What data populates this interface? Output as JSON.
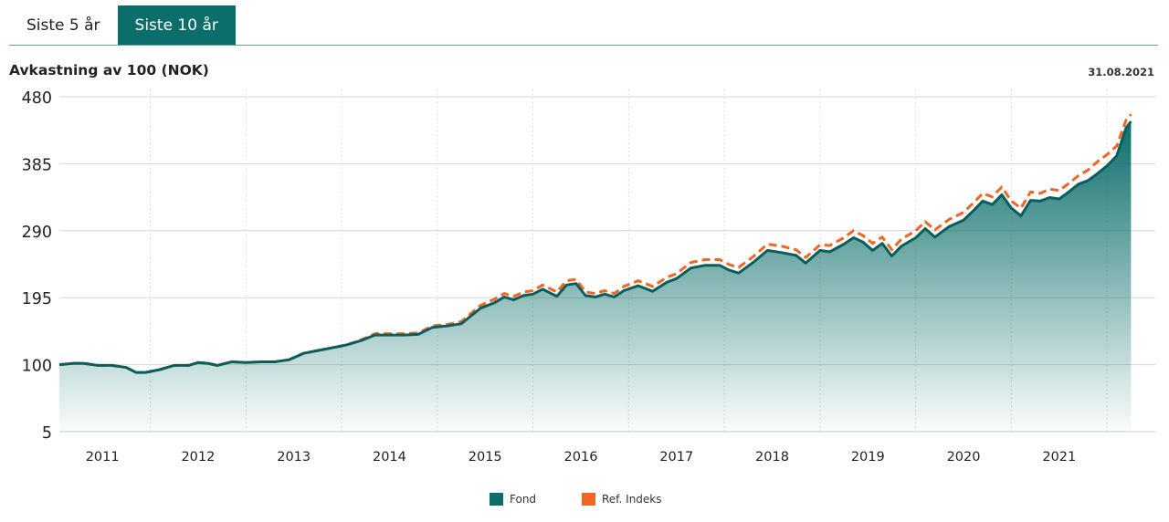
{
  "tabs": [
    {
      "label": "Siste 5 år",
      "active": false
    },
    {
      "label": "Siste 10 år",
      "active": true
    }
  ],
  "chart_title": "Avkastning av 100 (NOK)",
  "as_of_date": "31.08.2021",
  "colors": {
    "fond": "#0b6e6b",
    "ref": "#f26522",
    "tab_active": "#0b6e6b"
  },
  "chart_data": {
    "type": "area",
    "title": "Avkastning av 100 (NOK)",
    "xlabel": "",
    "ylabel": "",
    "x_range": [
      2010.55,
      2021.67
    ],
    "ylim": [
      5,
      480
    ],
    "yticks": [
      5,
      100,
      195,
      290,
      385,
      480
    ],
    "xticks": [
      {
        "label": "2011",
        "pos": 2011.0
      },
      {
        "label": "2012",
        "pos": 2012.0
      },
      {
        "label": "2013",
        "pos": 2013.0
      },
      {
        "label": "2014",
        "pos": 2014.0
      },
      {
        "label": "2015",
        "pos": 2015.0
      },
      {
        "label": "2016",
        "pos": 2016.0
      },
      {
        "label": "2017",
        "pos": 2017.0
      },
      {
        "label": "2018",
        "pos": 2018.0
      },
      {
        "label": "2019",
        "pos": 2019.0
      },
      {
        "label": "2020",
        "pos": 2020.0
      },
      {
        "label": "2021",
        "pos": 2021.0
      }
    ],
    "grid": true,
    "legend_position": "bottom-center",
    "series": [
      {
        "name": "Fond",
        "style": "area",
        "points": [
          [
            2010.55,
            100
          ],
          [
            2010.7,
            102
          ],
          [
            2010.8,
            102
          ],
          [
            2010.95,
            99
          ],
          [
            2011.1,
            99
          ],
          [
            2011.25,
            96
          ],
          [
            2011.35,
            89
          ],
          [
            2011.45,
            89
          ],
          [
            2011.6,
            93
          ],
          [
            2011.75,
            99
          ],
          [
            2011.9,
            99
          ],
          [
            2012.0,
            103
          ],
          [
            2012.1,
            102
          ],
          [
            2012.2,
            99
          ],
          [
            2012.35,
            104
          ],
          [
            2012.5,
            103
          ],
          [
            2012.65,
            104
          ],
          [
            2012.8,
            104
          ],
          [
            2012.95,
            107
          ],
          [
            2013.1,
            116
          ],
          [
            2013.25,
            120
          ],
          [
            2013.4,
            124
          ],
          [
            2013.55,
            128
          ],
          [
            2013.7,
            134
          ],
          [
            2013.85,
            142
          ],
          [
            2014.0,
            142
          ],
          [
            2014.15,
            142
          ],
          [
            2014.3,
            143
          ],
          [
            2014.45,
            153
          ],
          [
            2014.6,
            155
          ],
          [
            2014.75,
            158
          ],
          [
            2014.95,
            180
          ],
          [
            2015.1,
            188
          ],
          [
            2015.2,
            196
          ],
          [
            2015.3,
            192
          ],
          [
            2015.4,
            198
          ],
          [
            2015.5,
            200
          ],
          [
            2015.6,
            207
          ],
          [
            2015.75,
            197
          ],
          [
            2015.85,
            213
          ],
          [
            2015.95,
            215
          ],
          [
            2016.05,
            198
          ],
          [
            2016.15,
            196
          ],
          [
            2016.25,
            200
          ],
          [
            2016.35,
            196
          ],
          [
            2016.45,
            205
          ],
          [
            2016.6,
            212
          ],
          [
            2016.75,
            204
          ],
          [
            2016.9,
            217
          ],
          [
            2017.0,
            222
          ],
          [
            2017.15,
            237
          ],
          [
            2017.3,
            241
          ],
          [
            2017.45,
            241
          ],
          [
            2017.55,
            234
          ],
          [
            2017.65,
            230
          ],
          [
            2017.8,
            245
          ],
          [
            2017.95,
            262
          ],
          [
            2018.1,
            259
          ],
          [
            2018.25,
            255
          ],
          [
            2018.35,
            244
          ],
          [
            2018.5,
            262
          ],
          [
            2018.6,
            260
          ],
          [
            2018.75,
            271
          ],
          [
            2018.85,
            280
          ],
          [
            2018.95,
            274
          ],
          [
            2019.05,
            262
          ],
          [
            2019.15,
            272
          ],
          [
            2019.25,
            254
          ],
          [
            2019.35,
            268
          ],
          [
            2019.5,
            280
          ],
          [
            2019.6,
            293
          ],
          [
            2019.7,
            281
          ],
          [
            2019.85,
            296
          ],
          [
            2020.0,
            305
          ],
          [
            2020.1,
            318
          ],
          [
            2020.2,
            332
          ],
          [
            2020.3,
            327
          ],
          [
            2020.4,
            341
          ],
          [
            2020.5,
            322
          ],
          [
            2020.6,
            311
          ],
          [
            2020.7,
            333
          ],
          [
            2020.8,
            332
          ],
          [
            2020.9,
            337
          ],
          [
            2021.0,
            335
          ],
          [
            2021.1,
            345
          ],
          [
            2021.2,
            356
          ],
          [
            2021.3,
            361
          ],
          [
            2021.4,
            371
          ],
          [
            2021.5,
            382
          ],
          [
            2021.6,
            396
          ],
          [
            2021.7,
            436
          ],
          [
            2021.75,
            445
          ]
        ]
      },
      {
        "name": "Ref. Indeks",
        "style": "dashed-line",
        "points": [
          [
            2010.55,
            100
          ],
          [
            2010.7,
            102
          ],
          [
            2010.8,
            102
          ],
          [
            2010.95,
            99
          ],
          [
            2011.1,
            99
          ],
          [
            2011.25,
            96
          ],
          [
            2011.35,
            89
          ],
          [
            2011.45,
            89
          ],
          [
            2011.6,
            93
          ],
          [
            2011.75,
            99
          ],
          [
            2011.9,
            99
          ],
          [
            2012.0,
            103
          ],
          [
            2012.1,
            102
          ],
          [
            2012.2,
            99
          ],
          [
            2012.35,
            104
          ],
          [
            2012.5,
            103
          ],
          [
            2012.65,
            104
          ],
          [
            2012.8,
            104
          ],
          [
            2012.95,
            107
          ],
          [
            2013.1,
            116
          ],
          [
            2013.25,
            120
          ],
          [
            2013.4,
            124
          ],
          [
            2013.55,
            128
          ],
          [
            2013.7,
            135
          ],
          [
            2013.85,
            144
          ],
          [
            2014.0,
            144
          ],
          [
            2014.15,
            144
          ],
          [
            2014.3,
            145
          ],
          [
            2014.45,
            155
          ],
          [
            2014.6,
            157
          ],
          [
            2014.75,
            161
          ],
          [
            2014.95,
            184
          ],
          [
            2015.1,
            193
          ],
          [
            2015.2,
            201
          ],
          [
            2015.3,
            197
          ],
          [
            2015.4,
            203
          ],
          [
            2015.5,
            205
          ],
          [
            2015.6,
            213
          ],
          [
            2015.75,
            203
          ],
          [
            2015.85,
            219
          ],
          [
            2015.95,
            221
          ],
          [
            2016.05,
            203
          ],
          [
            2016.15,
            201
          ],
          [
            2016.25,
            205
          ],
          [
            2016.35,
            201
          ],
          [
            2016.45,
            211
          ],
          [
            2016.6,
            219
          ],
          [
            2016.75,
            211
          ],
          [
            2016.9,
            224
          ],
          [
            2017.0,
            229
          ],
          [
            2017.15,
            245
          ],
          [
            2017.3,
            249
          ],
          [
            2017.45,
            249
          ],
          [
            2017.55,
            242
          ],
          [
            2017.65,
            238
          ],
          [
            2017.8,
            253
          ],
          [
            2017.95,
            271
          ],
          [
            2018.1,
            268
          ],
          [
            2018.25,
            263
          ],
          [
            2018.35,
            252
          ],
          [
            2018.5,
            270
          ],
          [
            2018.6,
            269
          ],
          [
            2018.75,
            280
          ],
          [
            2018.85,
            290
          ],
          [
            2018.95,
            283
          ],
          [
            2019.05,
            272
          ],
          [
            2019.15,
            281
          ],
          [
            2019.25,
            263
          ],
          [
            2019.35,
            278
          ],
          [
            2019.5,
            290
          ],
          [
            2019.6,
            303
          ],
          [
            2019.7,
            291
          ],
          [
            2019.85,
            306
          ],
          [
            2020.0,
            316
          ],
          [
            2020.1,
            329
          ],
          [
            2020.2,
            343
          ],
          [
            2020.3,
            338
          ],
          [
            2020.4,
            352
          ],
          [
            2020.5,
            332
          ],
          [
            2020.6,
            322
          ],
          [
            2020.7,
            345
          ],
          [
            2020.8,
            343
          ],
          [
            2020.9,
            349
          ],
          [
            2021.0,
            347
          ],
          [
            2021.1,
            357
          ],
          [
            2021.2,
            368
          ],
          [
            2021.3,
            376
          ],
          [
            2021.4,
            388
          ],
          [
            2021.5,
            398
          ],
          [
            2021.6,
            410
          ],
          [
            2021.7,
            447
          ],
          [
            2021.75,
            455
          ]
        ]
      }
    ]
  },
  "legend": [
    {
      "label": "Fond",
      "color": "#0b6e6b"
    },
    {
      "label": "Ref. Indeks",
      "color": "#f26522"
    }
  ]
}
